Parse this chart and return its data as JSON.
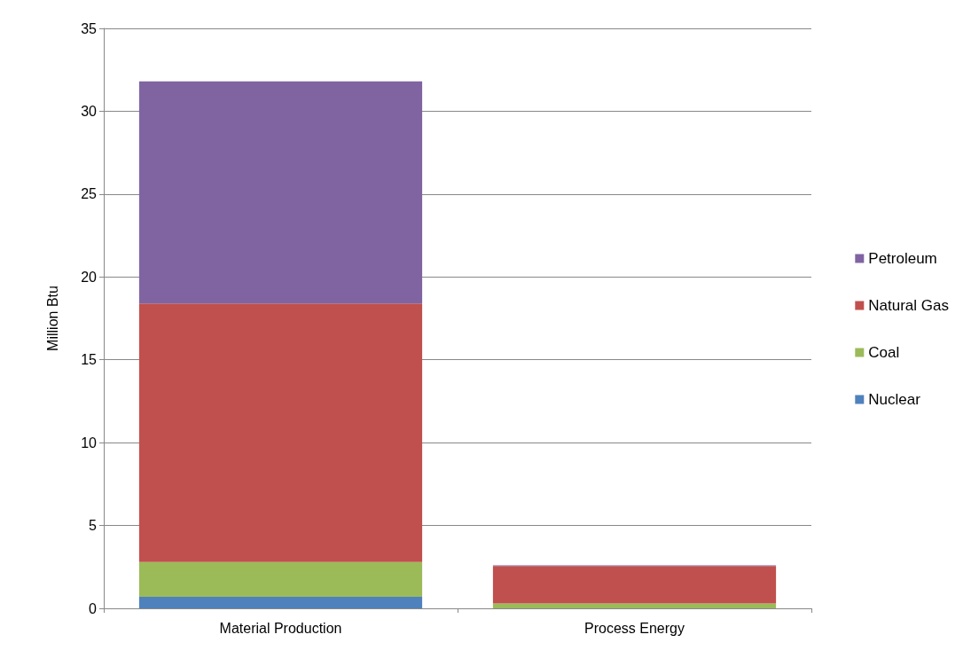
{
  "chart_data": {
    "type": "bar",
    "stacked": true,
    "ylabel": "Million Btu",
    "categories": [
      "Material Production",
      "Process Energy"
    ],
    "series": [
      {
        "name": "Nuclear",
        "color": "#4f81bd",
        "values": [
          0.7,
          0
        ]
      },
      {
        "name": "Coal",
        "color": "#9bbb59",
        "values": [
          2.1,
          0.3
        ]
      },
      {
        "name": "Natural Gas",
        "color": "#c0504d",
        "values": [
          15.6,
          2.25
        ]
      },
      {
        "name": "Petroleum",
        "color": "#8064a2",
        "values": [
          13.4,
          0.05
        ]
      }
    ],
    "ylim": [
      0,
      35
    ],
    "yticks": [
      0,
      5,
      10,
      15,
      20,
      25,
      30,
      35
    ],
    "grid": "y",
    "legend": "right"
  }
}
